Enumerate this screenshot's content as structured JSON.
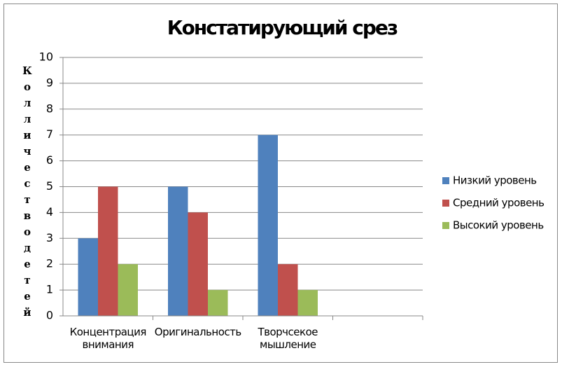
{
  "chart_data": {
    "type": "bar",
    "title": "Констатирующий срез",
    "ylabel": "Колличество детей",
    "categories": [
      "Концентрация внимания",
      "Оригинальность",
      "Творчсекое мышление",
      null
    ],
    "series": [
      {
        "name": "Низкий уровень",
        "color": "#4f81bd",
        "values": [
          3,
          5,
          7,
          null
        ]
      },
      {
        "name": "Средний уровень",
        "color": "#c0504d",
        "values": [
          5,
          4,
          2,
          null
        ]
      },
      {
        "name": "Высокий уровень",
        "color": "#9bbb59",
        "values": [
          2,
          1,
          1,
          null
        ]
      }
    ],
    "ylim": [
      0,
      10
    ],
    "yticks": [
      0,
      1,
      2,
      3,
      4,
      5,
      6,
      7,
      8,
      9,
      10
    ],
    "grid": true,
    "legend": "right"
  }
}
